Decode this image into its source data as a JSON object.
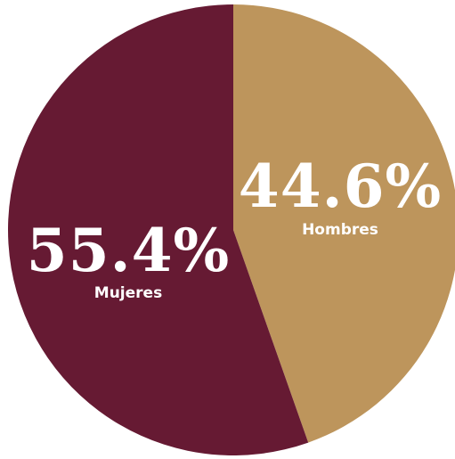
{
  "chart_data": {
    "type": "pie",
    "slices": [
      {
        "label": "Hombres",
        "value": 44.6,
        "display": "44.6%",
        "color": "#BD955C"
      },
      {
        "label": "Mujeres",
        "value": 55.4,
        "display": "55.4%",
        "color": "#661A33"
      }
    ],
    "start": "top",
    "direction": "clockwise",
    "legend": "none"
  }
}
